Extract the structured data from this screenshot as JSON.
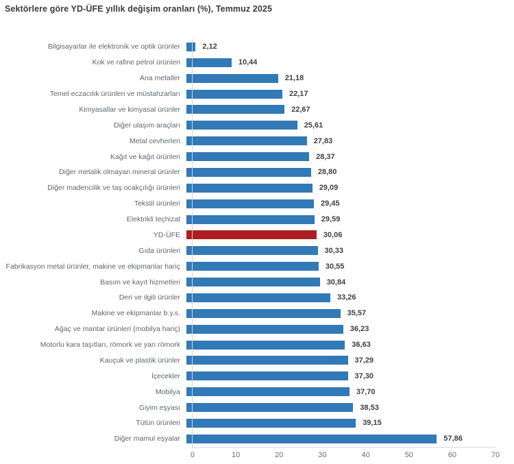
{
  "page": {
    "title": "Sektörlere göre YD-ÜFE yıllık değişim oranları (%), Temmuz 2025"
  },
  "colors": {
    "bar": "#3279b7",
    "highlight_bar": "#ad1f23",
    "axis_line": "#d9d9d9",
    "category_text": "#5b6770",
    "value_text": "#3f3f3f"
  },
  "chart_data": {
    "type": "bar",
    "orientation": "horizontal",
    "title": "Sektörlere göre YD-ÜFE yıllık değişim oranları (%), Temmuz 2025",
    "categories": [
      "Bilgisayarlar ile elektronik ve optik ürünler",
      "Kok ve rafine petrol ürünleri",
      "Ana metaller",
      "Temel eczacılık ürünleri ve müstahzarları",
      "Kimyasallar ve kimyasal ürünler",
      "Diğer ulaşım araçları",
      "Metal cevherleri",
      "Kağıt ve kağıt ürünleri",
      "Diğer metalik olmayan mineral ürünler",
      "Diğer madencilik ve taş ocakçılığı ürünleri",
      "Tekstil ürünleri",
      "Elektrikli teçhizat",
      "YD-ÜFE",
      "Gıda ürünleri",
      "Fabrikasyon metal ürünler, makine ve ekipmanlar hariç",
      "Basım ve kayıt hizmetleri",
      "Deri ve ilgili ürünler",
      "Makine ve ekipmanlar b.y.s.",
      "Ağaç ve mantar ürünleri (mobilya hariç)",
      "Motorlu kara taşıtları, römork ve yarı römork",
      "Kauçuk ve plastik ürünler",
      "İçecekler",
      "Mobilya",
      "Giyim eşyası",
      "Tütün ürünleri",
      "Diğer mamul eşyalar"
    ],
    "values": [
      2.12,
      10.44,
      21.18,
      22.17,
      22.67,
      25.61,
      27.83,
      28.37,
      28.8,
      29.09,
      29.45,
      29.59,
      30.06,
      30.33,
      30.55,
      30.84,
      33.26,
      35.57,
      36.23,
      36.63,
      37.29,
      37.3,
      37.7,
      38.53,
      39.15,
      57.86
    ],
    "value_labels": [
      "2,12",
      "10,44",
      "21,18",
      "22,17",
      "22,67",
      "25,61",
      "27,83",
      "28,37",
      "28,80",
      "29,09",
      "29,45",
      "29,59",
      "30,06",
      "30,33",
      "30,55",
      "30,84",
      "33,26",
      "35,57",
      "36,23",
      "36,63",
      "37,29",
      "37,30",
      "37,70",
      "38,53",
      "39,15",
      "57,86"
    ],
    "highlight_category": "YD-ÜFE",
    "highlight_index": 12,
    "xlabel": "",
    "ylabel": "",
    "xlim": [
      0,
      70
    ],
    "x_ticks": [
      0,
      10,
      20,
      30,
      40,
      50,
      60,
      70
    ],
    "grid": false,
    "legend": false
  }
}
